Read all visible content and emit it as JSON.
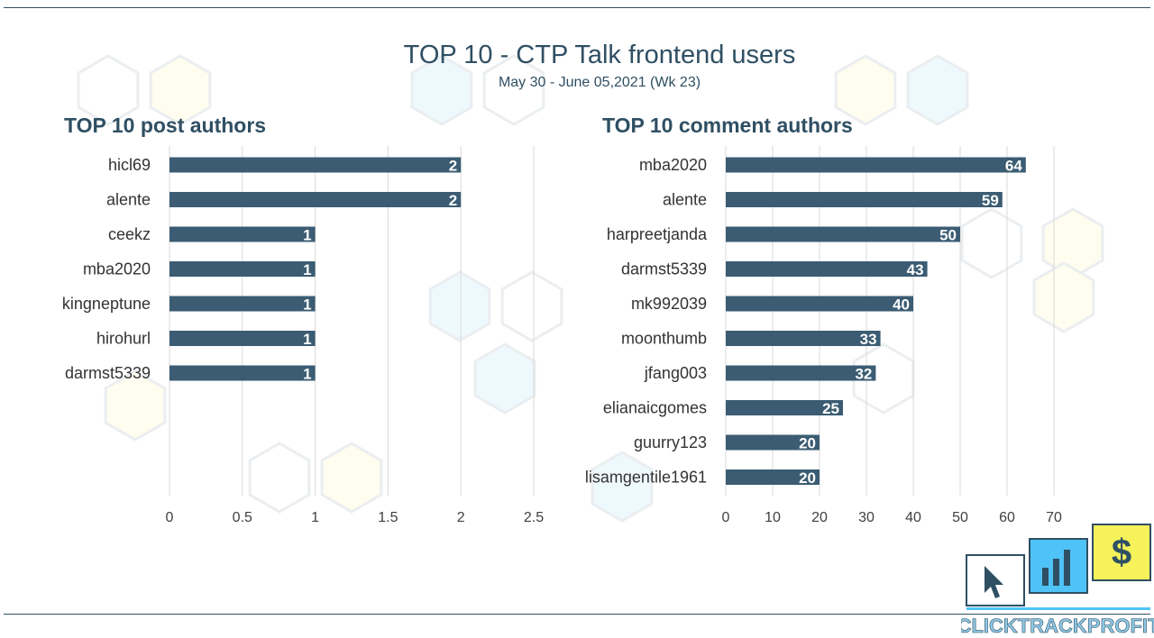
{
  "header": {
    "title": "TOP 10 - CTP Talk frontend users",
    "subtitle": "May 30 - June 05,2021 (Wk 23)"
  },
  "colors": {
    "bar": "#3b5c73",
    "title": "#2f4f63",
    "text": "#333333",
    "grid": "#d9d9d9",
    "brand_blue": "#4fc3f7",
    "brand_yellow": "#f5f25a"
  },
  "brand": {
    "name": "CLICKTRACKPROFIT",
    "icons": [
      "cursor-icon",
      "bar-chart-icon",
      "dollar-icon"
    ]
  },
  "chart_data": [
    {
      "type": "bar",
      "orientation": "horizontal",
      "title": "TOP 10 post authors",
      "categories": [
        "hicl69",
        "alente",
        "ceekz",
        "mba2020",
        "kingneptune",
        "hirohurl",
        "darmst5339"
      ],
      "values": [
        2,
        2,
        1,
        1,
        1,
        1,
        1
      ],
      "xlim": [
        0,
        2.5
      ],
      "xticks": [
        "0",
        "0.5",
        "1",
        "1.5",
        "2",
        "2.5"
      ],
      "grid": true,
      "data_labels": true
    },
    {
      "type": "bar",
      "orientation": "horizontal",
      "title": "TOP 10 comment authors",
      "categories": [
        "mba2020",
        "alente",
        "harpreetjanda",
        "darmst5339",
        "mk992039",
        "moonthumb",
        "jfang003",
        "elianaicgomes",
        "guurry123",
        "lisamgentile1961"
      ],
      "values": [
        64,
        59,
        50,
        43,
        40,
        33,
        32,
        25,
        20,
        20
      ],
      "xlim": [
        0,
        70
      ],
      "xticks": [
        "0",
        "10",
        "20",
        "30",
        "40",
        "50",
        "60",
        "70"
      ],
      "grid": true,
      "data_labels": true
    }
  ]
}
